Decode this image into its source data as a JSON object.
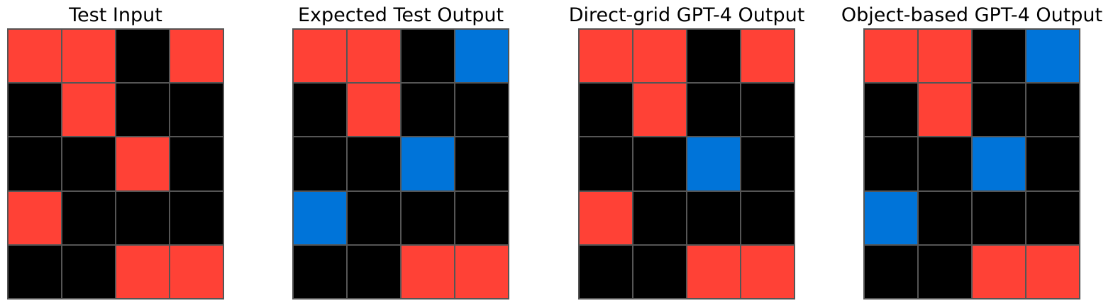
{
  "colors": {
    "0": "#000000",
    "1": "#0074D9",
    "2": "#FF4136"
  },
  "panels": [
    {
      "title": "Test Input",
      "grid": [
        [
          2,
          2,
          0,
          2
        ],
        [
          0,
          2,
          0,
          0
        ],
        [
          0,
          0,
          2,
          0
        ],
        [
          2,
          0,
          0,
          0
        ],
        [
          0,
          0,
          2,
          2
        ]
      ]
    },
    {
      "title": "Expected Test Output",
      "grid": [
        [
          2,
          2,
          0,
          1
        ],
        [
          0,
          2,
          0,
          0
        ],
        [
          0,
          0,
          1,
          0
        ],
        [
          1,
          0,
          0,
          0
        ],
        [
          0,
          0,
          2,
          2
        ]
      ]
    },
    {
      "title": "Direct-grid GPT-4 Output",
      "grid": [
        [
          2,
          2,
          0,
          2
        ],
        [
          0,
          2,
          0,
          0
        ],
        [
          0,
          0,
          1,
          0
        ],
        [
          2,
          0,
          0,
          0
        ],
        [
          0,
          0,
          2,
          2
        ]
      ]
    },
    {
      "title": "Object-based GPT-4 Output",
      "grid": [
        [
          2,
          2,
          0,
          1
        ],
        [
          0,
          2,
          0,
          0
        ],
        [
          0,
          0,
          1,
          0
        ],
        [
          1,
          0,
          0,
          0
        ],
        [
          0,
          0,
          2,
          2
        ]
      ]
    }
  ]
}
